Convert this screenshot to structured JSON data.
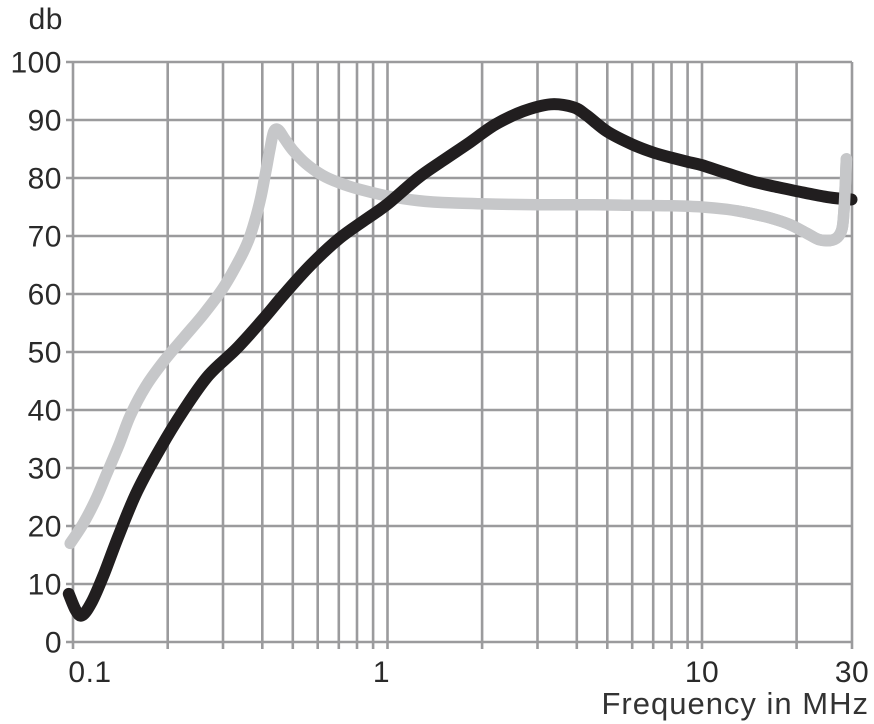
{
  "page": {
    "background": "#ffffff"
  },
  "chart_data": {
    "type": "line",
    "title": "",
    "x_axis": {
      "label": "Frequency in MHz",
      "scale": "log",
      "min": 0.1,
      "max": 30,
      "unit": "MHz",
      "major_ticks": [
        {
          "value": 0.1,
          "label": "0.1"
        },
        {
          "value": 1,
          "label": "1"
        },
        {
          "value": 10,
          "label": "10"
        },
        {
          "value": 30,
          "label": "30"
        }
      ],
      "gridlines": [
        0.1,
        0.2,
        0.3,
        0.4,
        0.5,
        0.6,
        0.7,
        0.8,
        0.9,
        1,
        2,
        3,
        4,
        5,
        6,
        7,
        8,
        9,
        10,
        20,
        30
      ]
    },
    "y_axis": {
      "label": "db",
      "min": 0,
      "max": 100,
      "tick_step": 10,
      "ticks": [
        {
          "value": 0,
          "label": "0"
        },
        {
          "value": 10,
          "label": "10"
        },
        {
          "value": 20,
          "label": "20"
        },
        {
          "value": 30,
          "label": "30"
        },
        {
          "value": 40,
          "label": "40"
        },
        {
          "value": 50,
          "label": "50"
        },
        {
          "value": 60,
          "label": "60"
        },
        {
          "value": 70,
          "label": "70"
        },
        {
          "value": 80,
          "label": "80"
        },
        {
          "value": 90,
          "label": "90"
        },
        {
          "value": 100,
          "label": "100"
        }
      ]
    },
    "grid": true,
    "legend": "none",
    "colors": {
      "grid": "#9b9b9d",
      "text": "#2a2a2a",
      "background": "#ffffff"
    },
    "series": [
      {
        "name": "gray-response-curve",
        "color": "#c6c7c9",
        "stroke_width": 11.5,
        "description": "light gray curve: rises from 17 db at 0.1 MHz, sharp resonance peak ~88 db near 0.45 MHz, plateau ~75 db from 1.5-10 MHz, dips to ~69 db near 24 MHz, hooks up to ~83 db near 29 MHz",
        "redraw_on_top_from_mhz": 13,
        "points": [
          [
            0.098,
            17
          ],
          [
            0.108,
            20.5
          ],
          [
            0.118,
            24.5
          ],
          [
            0.128,
            29
          ],
          [
            0.14,
            34
          ],
          [
            0.152,
            39
          ],
          [
            0.17,
            44
          ],
          [
            0.195,
            48.5
          ],
          [
            0.225,
            52.5
          ],
          [
            0.26,
            56.5
          ],
          [
            0.3,
            61
          ],
          [
            0.335,
            65.5
          ],
          [
            0.36,
            69
          ],
          [
            0.378,
            72.5
          ],
          [
            0.395,
            76.5
          ],
          [
            0.41,
            81
          ],
          [
            0.423,
            85
          ],
          [
            0.435,
            88
          ],
          [
            0.45,
            88.3
          ],
          [
            0.47,
            86.8
          ],
          [
            0.5,
            84.8
          ],
          [
            0.55,
            82.5
          ],
          [
            0.62,
            80.5
          ],
          [
            0.7,
            79.2
          ],
          [
            0.82,
            78
          ],
          [
            1.0,
            76.9
          ],
          [
            1.25,
            76.1
          ],
          [
            1.6,
            75.7
          ],
          [
            2.2,
            75.5
          ],
          [
            3.0,
            75.4
          ],
          [
            4.5,
            75.4
          ],
          [
            6.0,
            75.3
          ],
          [
            8.0,
            75.2
          ],
          [
            10,
            75.0
          ],
          [
            12,
            74.6
          ],
          [
            14,
            74.0
          ],
          [
            16.5,
            73.1
          ],
          [
            19,
            72.0
          ],
          [
            21.5,
            70.5
          ],
          [
            23.5,
            69.4
          ],
          [
            25.5,
            69.2
          ],
          [
            27,
            69.8
          ],
          [
            27.9,
            71.3
          ],
          [
            28.3,
            74.5
          ],
          [
            28.55,
            78.5
          ],
          [
            28.7,
            81.5
          ],
          [
            28.8,
            83.3
          ]
        ]
      },
      {
        "name": "black-response-curve",
        "color": "#211e1f",
        "stroke_width": 12,
        "description": "black curve: starts ~8 db at 0.1 MHz, dips to ~4.5 db, rises steadily to broad peak ~92.5 db near 3.3 MHz, falls to ~76 db by 30 MHz",
        "points": [
          [
            0.097,
            8.3
          ],
          [
            0.102,
            5.5
          ],
          [
            0.107,
            4.6
          ],
          [
            0.115,
            7
          ],
          [
            0.125,
            11.5
          ],
          [
            0.14,
            18.5
          ],
          [
            0.16,
            26
          ],
          [
            0.19,
            33.5
          ],
          [
            0.225,
            40
          ],
          [
            0.27,
            46
          ],
          [
            0.33,
            50.5
          ],
          [
            0.4,
            55.5
          ],
          [
            0.47,
            60
          ],
          [
            0.57,
            65
          ],
          [
            0.7,
            69.5
          ],
          [
            0.85,
            72.8
          ],
          [
            1.0,
            75.5
          ],
          [
            1.25,
            80
          ],
          [
            1.5,
            83
          ],
          [
            1.8,
            85.9
          ],
          [
            2.2,
            89.2
          ],
          [
            2.7,
            91.5
          ],
          [
            3.3,
            92.7
          ],
          [
            3.9,
            92.2
          ],
          [
            4.3,
            90.8
          ],
          [
            5.0,
            88.0
          ],
          [
            6.0,
            85.8
          ],
          [
            7.0,
            84.4
          ],
          [
            8.0,
            83.5
          ],
          [
            9.0,
            82.8
          ],
          [
            10,
            82.2
          ],
          [
            12,
            80.8
          ],
          [
            14.5,
            79.4
          ],
          [
            17.5,
            78.4
          ],
          [
            21,
            77.5
          ],
          [
            25,
            76.7
          ],
          [
            28,
            76.4
          ],
          [
            29.9,
            76.3
          ]
        ]
      }
    ]
  }
}
